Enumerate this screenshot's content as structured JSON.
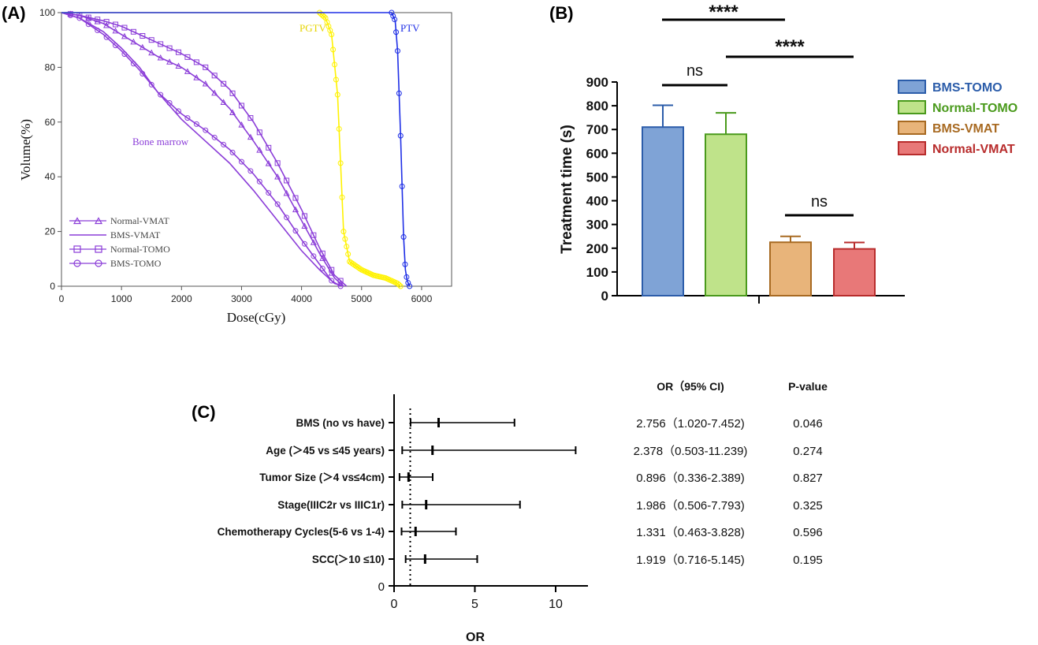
{
  "panel_labels": {
    "a": "(A)",
    "b": "(B)",
    "c": "(C)"
  },
  "colors": {
    "purple": "#8B3DD8",
    "purple_light": "#C79BEF",
    "yellow": "#FFF200",
    "blue": "#1F2FE6",
    "bar_bms_tomo": "#7FA3D6",
    "bar_normal_tomo": "#BFE38A",
    "bar_bms_vmat": "#E8B47A",
    "bar_normal_vmat": "#E87878",
    "edge_bms_tomo": "#2C5DAA",
    "edge_normal_tomo": "#4A9A1C",
    "edge_bms_vmat": "#A86A22",
    "edge_normal_vmat": "#B82C2C"
  },
  "chart_data": [
    {
      "type": "line",
      "xlabel": "Dose(cGy)",
      "ylabel": "Volume(%)",
      "xlim": [
        0,
        6500
      ],
      "ylim": [
        0,
        100
      ],
      "x_ticks": [
        "0",
        "1000",
        "2000",
        "3000",
        "4000",
        "5000",
        "6000"
      ],
      "y_ticks": [
        "0",
        "20",
        "40",
        "60",
        "80",
        "100"
      ],
      "annotations": {
        "bone_marrow": "Bone marrow",
        "pgtv": "PGTV",
        "ptv": "PTV"
      },
      "legend": {
        "placement": "bottom-left",
        "entries": [
          "Normal-VMAT",
          "BMS-VMAT",
          "Normal-TOMO",
          "BMS-TOMO"
        ]
      },
      "series": [
        {
          "name": "BMS-VMAT",
          "group": "Bone marrow",
          "marker": "none",
          "x": [
            0,
            300,
            700,
            1000,
            1300,
            1600,
            2000,
            2400,
            2800,
            3200,
            3600,
            4000,
            4300,
            4550,
            4700
          ],
          "y": [
            100,
            98,
            93,
            87,
            80,
            71,
            61,
            53,
            45,
            35,
            24,
            13,
            6,
            1,
            0
          ]
        },
        {
          "name": "BMS-TOMO",
          "group": "Bone marrow",
          "marker": "circle",
          "x": [
            0,
            300,
            700,
            1000,
            1300,
            1600,
            2000,
            2400,
            2800,
            3200,
            3600,
            4000,
            4300,
            4500,
            4650
          ],
          "y": [
            100,
            98,
            92,
            86,
            79,
            71,
            63,
            57,
            50,
            41,
            30,
            17,
            8,
            2,
            0
          ]
        },
        {
          "name": "Normal-VMAT",
          "group": "Bone marrow",
          "marker": "triangle",
          "x": [
            0,
            300,
            700,
            1000,
            1300,
            1600,
            2000,
            2400,
            2800,
            3200,
            3600,
            4000,
            4300,
            4550,
            4700
          ],
          "y": [
            100,
            99,
            96,
            92,
            88,
            84,
            80,
            74,
            65,
            53,
            40,
            24,
            12,
            3,
            0
          ]
        },
        {
          "name": "Normal-TOMO",
          "group": "Bone marrow",
          "marker": "square",
          "x": [
            0,
            300,
            700,
            1000,
            1300,
            1600,
            2000,
            2400,
            2800,
            3200,
            3600,
            4000,
            4300,
            4550,
            4750
          ],
          "y": [
            100,
            99,
            97,
            95,
            92,
            89,
            85,
            80,
            72,
            60,
            45,
            28,
            14,
            4,
            0
          ]
        },
        {
          "name": "PGTV",
          "group": "PGTV",
          "marker": "circle",
          "x": [
            0,
            4300,
            4400,
            4500,
            4600,
            4700,
            4800,
            5000,
            5200,
            5400,
            5600,
            5650
          ],
          "y": [
            100,
            100,
            98,
            92,
            70,
            20,
            9,
            6,
            4,
            3,
            1,
            0
          ]
        },
        {
          "name": "PTV",
          "group": "PTV",
          "marker": "circle",
          "x": [
            0,
            5500,
            5560,
            5600,
            5650,
            5700,
            5730,
            5760,
            5800
          ],
          "y": [
            100,
            100,
            97,
            86,
            55,
            18,
            6,
            2,
            0
          ]
        }
      ]
    },
    {
      "type": "bar",
      "ylabel": "Treatment time (s)",
      "ylim": [
        0,
        900
      ],
      "y_ticks": [
        "0",
        "100",
        "200",
        "300",
        "400",
        "500",
        "600",
        "700",
        "800",
        "900"
      ],
      "categories": [
        "BMS-TOMO",
        "Normal-TOMO",
        "BMS-VMAT",
        "Normal-VMAT"
      ],
      "values": [
        710,
        680,
        225,
        197
      ],
      "errors": [
        92,
        90,
        25,
        27
      ],
      "legend": {
        "placement": "right",
        "entries": [
          "BMS-TOMO",
          "Normal-TOMO",
          "BMS-VMAT",
          "Normal-VMAT"
        ]
      },
      "significance": [
        {
          "label": "****",
          "between": [
            "BMS-TOMO",
            "BMS-VMAT"
          ]
        },
        {
          "label": "ns",
          "between": [
            "BMS-TOMO",
            "Normal-TOMO"
          ]
        },
        {
          "label": "****",
          "between": [
            "Normal-TOMO",
            "Normal-VMAT"
          ]
        },
        {
          "label": "ns",
          "between": [
            "BMS-VMAT",
            "Normal-VMAT"
          ]
        }
      ]
    },
    {
      "type": "forest",
      "xlabel": "OR",
      "xlim": [
        0,
        12
      ],
      "x_ticks": [
        "0",
        "5",
        "10"
      ],
      "reference_line": 1,
      "headers": {
        "or": "OR（95% CI)",
        "p": "P-value"
      },
      "rows": [
        {
          "label": "BMS (no vs have)",
          "or": 2.756,
          "low": 1.02,
          "high": 7.452,
          "or_text": "2.756（1.020-7.452)",
          "p": "0.046"
        },
        {
          "label": "Age (＞45 vs ≤45 years)",
          "or": 2.378,
          "low": 0.503,
          "high": 11.239,
          "or_text": "2.378（0.503-11.239)",
          "p": "0.274"
        },
        {
          "label": "Tumor Size (＞4 vs≤4cm)",
          "or": 0.896,
          "low": 0.336,
          "high": 2.389,
          "or_text": "0.896（0.336-2.389)",
          "p": "0.827"
        },
        {
          "label": "Stage(IIIC2r vs IIIC1r)",
          "or": 1.986,
          "low": 0.506,
          "high": 7.793,
          "or_text": "1.986（0.506-7.793)",
          "p": "0.325"
        },
        {
          "label": "Chemotherapy Cycles(5-6 vs 1-4)",
          "or": 1.331,
          "low": 0.463,
          "high": 3.828,
          "or_text": "1.331（0.463-3.828)",
          "p": "0.596"
        },
        {
          "label": "SCC(＞10 ≤10)",
          "or": 1.919,
          "low": 0.716,
          "high": 5.145,
          "or_text": "1.919（0.716-5.145)",
          "p": "0.195"
        }
      ]
    }
  ]
}
